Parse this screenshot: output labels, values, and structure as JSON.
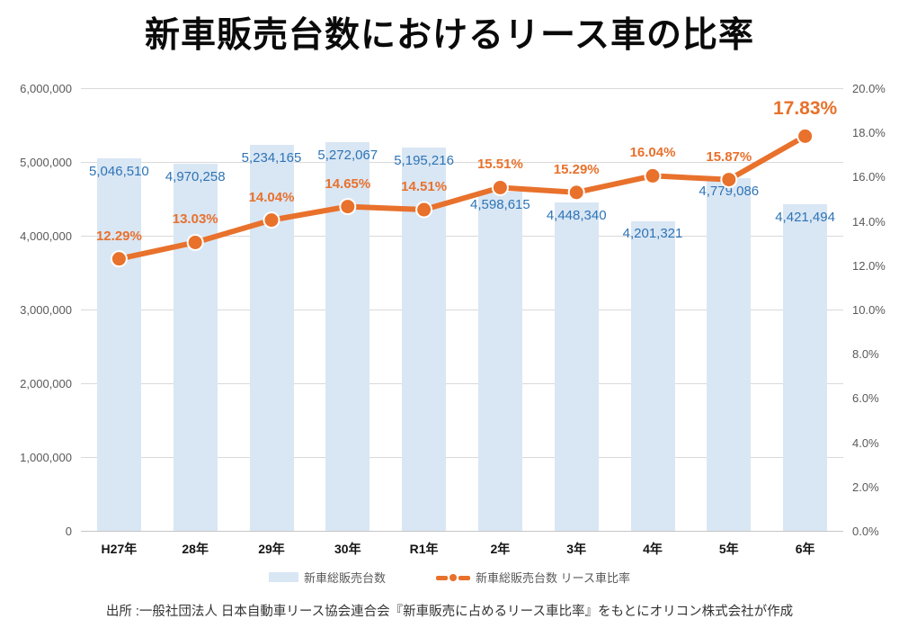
{
  "title": "新車販売台数におけるリース車の比率",
  "source": "出所 :一般社団法人 日本自動車リース協会連合会『新車販売に占めるリース車比率』をもとにオリコン株式会社が作成",
  "legend": {
    "bars": "新車総販売台数",
    "line": "新車総販売台数 リース車比率"
  },
  "colors": {
    "bar_fill": "#d9e6f4",
    "line": "#e8712c",
    "bar_label": "#2e74b5",
    "pct_label": "#e8712c",
    "grid": "#d9d9d9",
    "axis_text": "#595959"
  },
  "chart_data": {
    "type": "bar",
    "subtype": "bar+line combo, dual axis",
    "title": "新車販売台数におけるリース車の比率",
    "categories": [
      "H27年",
      "28年",
      "29年",
      "30年",
      "R1年",
      "2年",
      "3年",
      "4年",
      "5年",
      "6年"
    ],
    "series": [
      {
        "name": "新車総販売台数",
        "type": "bar",
        "axis": "left",
        "values": [
          5046510,
          4970258,
          5234165,
          5272067,
          5195216,
          4598615,
          4448340,
          4201321,
          4779086,
          4421494
        ],
        "labels": [
          "5,046,510",
          "4,970,258",
          "5,234,165",
          "5,272,067",
          "5,195,216",
          "4,598,615",
          "4,448,340",
          "4,201,321",
          "4,779,086",
          "4,421,494"
        ]
      },
      {
        "name": "新車総販売台数 リース車比率",
        "type": "line",
        "axis": "right",
        "values": [
          12.29,
          13.03,
          14.04,
          14.65,
          14.51,
          15.51,
          15.29,
          16.04,
          15.87,
          17.83
        ],
        "labels": [
          "12.29%",
          "13.03%",
          "14.04%",
          "14.65%",
          "14.51%",
          "15.51%",
          "15.29%",
          "16.04%",
          "15.87%",
          "17.83%"
        ]
      }
    ],
    "left_axis": {
      "min": 0,
      "max": 6000000,
      "step": 1000000,
      "ticks": [
        "0",
        "1,000,000",
        "2,000,000",
        "3,000,000",
        "4,000,000",
        "5,000,000",
        "6,000,000"
      ]
    },
    "right_axis": {
      "min": 0,
      "max": 20,
      "step": 2,
      "ticks": [
        "0.0%",
        "2.0%",
        "4.0%",
        "6.0%",
        "8.0%",
        "10.0%",
        "12.0%",
        "14.0%",
        "16.0%",
        "18.0%",
        "20.0%"
      ],
      "emphasize_last_label": true
    },
    "grid": true,
    "legend_position": "bottom"
  }
}
